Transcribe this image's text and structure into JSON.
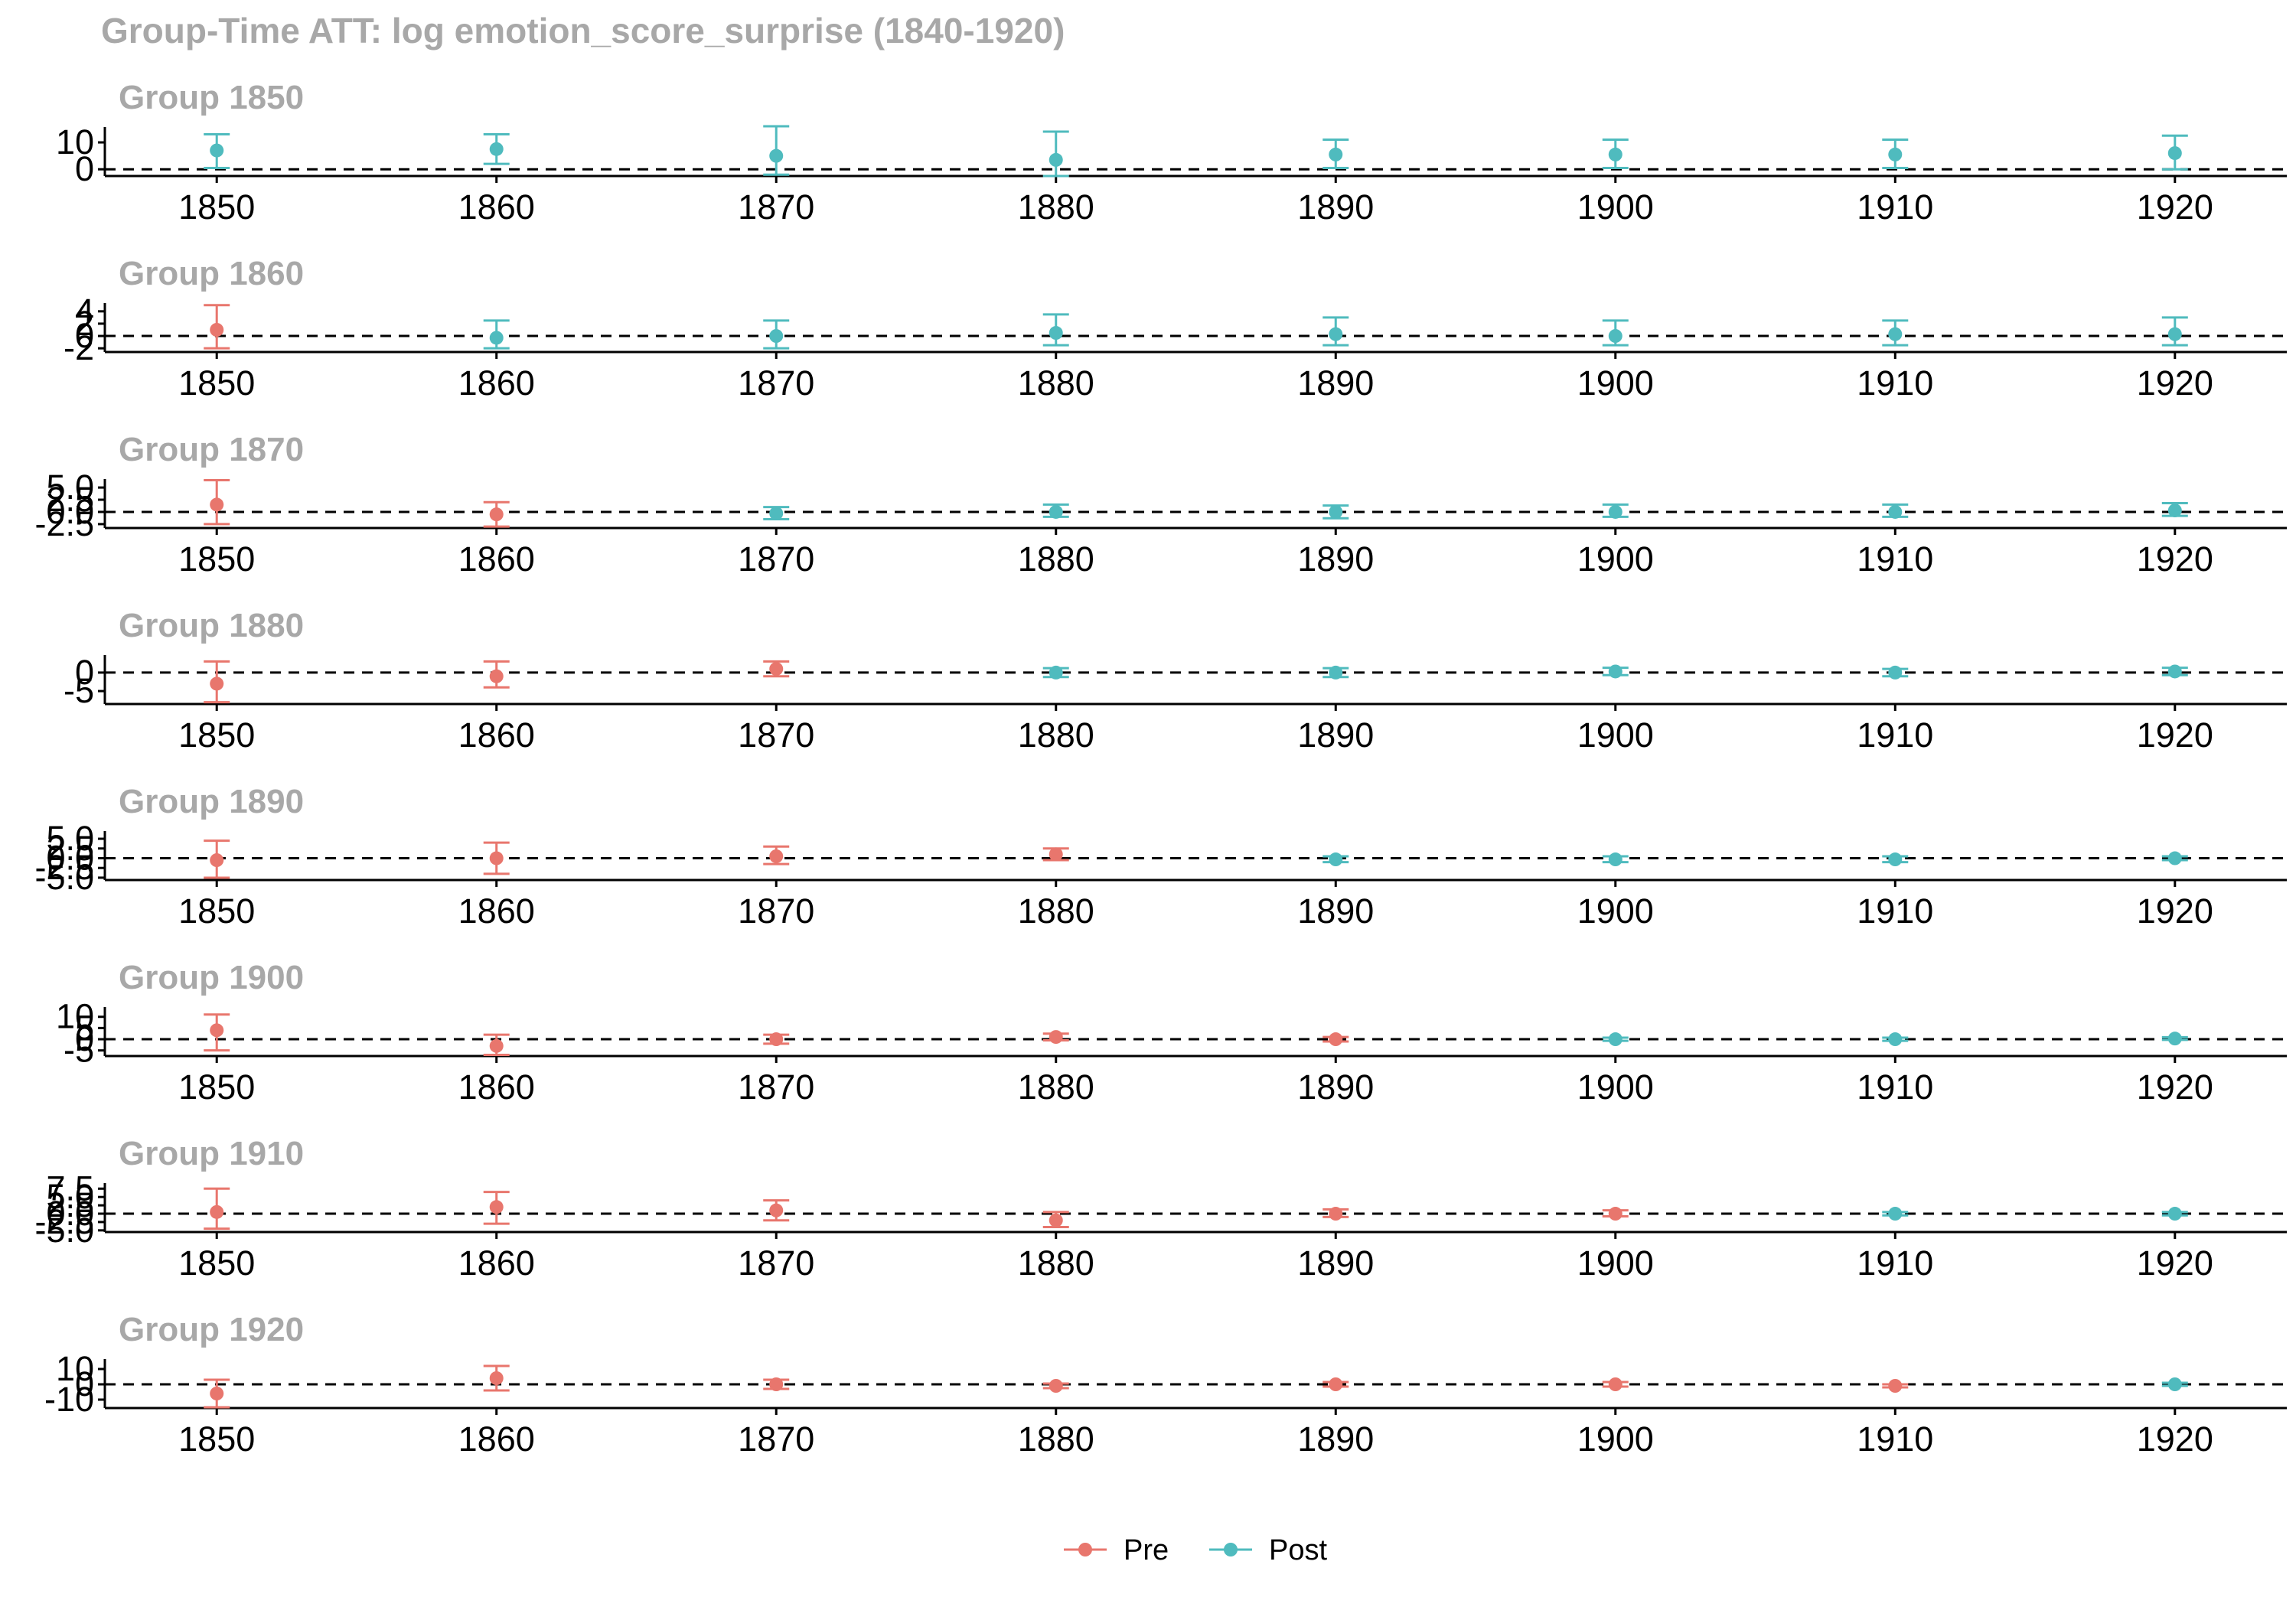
{
  "chart_data": {
    "type": "scatter",
    "title": "Group-Time ATT: log emotion_score_surprise (1840-1920)",
    "x_ticks": [
      "1850",
      "1860",
      "1870",
      "1880",
      "1890",
      "1900",
      "1910",
      "1920"
    ],
    "xlim": [
      1846,
      1924
    ],
    "reference_line_y": 0,
    "legend": {
      "position": "bottom",
      "entries": [
        {
          "label": "Pre",
          "color": "#E8766D"
        },
        {
          "label": "Post",
          "color": "#4FBBBE"
        }
      ]
    },
    "panels": [
      {
        "title": "Group 1850",
        "ylim": [
          -2.5,
          14
        ],
        "y_ticks": [
          "0",
          "10"
        ],
        "y_tick_values": [
          0,
          10
        ],
        "points": [
          {
            "x": 1850,
            "att": 7.0,
            "lo": 0.5,
            "hi": 13.0,
            "period": "Post"
          },
          {
            "x": 1860,
            "att": 7.5,
            "lo": 2.0,
            "hi": 13.0,
            "period": "Post"
          },
          {
            "x": 1870,
            "att": 5.0,
            "lo": -2.0,
            "hi": 16.0,
            "period": "Post"
          },
          {
            "x": 1880,
            "att": 3.5,
            "lo": -2.5,
            "hi": 14.0,
            "period": "Post"
          },
          {
            "x": 1890,
            "att": 5.5,
            "lo": 0.5,
            "hi": 11.0,
            "period": "Post"
          },
          {
            "x": 1900,
            "att": 5.5,
            "lo": 0.5,
            "hi": 11.0,
            "period": "Post"
          },
          {
            "x": 1910,
            "att": 5.5,
            "lo": 0.5,
            "hi": 11.0,
            "period": "Post"
          },
          {
            "x": 1920,
            "att": 6.0,
            "lo": 0.0,
            "hi": 12.5,
            "period": "Post"
          }
        ]
      },
      {
        "title": "Group 1860",
        "ylim": [
          -2.6,
          4.6
        ],
        "y_ticks": [
          "-2",
          "0",
          "2",
          "4"
        ],
        "y_tick_values": [
          -2,
          0,
          2,
          4
        ],
        "points": [
          {
            "x": 1850,
            "att": 1.0,
            "lo": -2.0,
            "hi": 5.0,
            "period": "Pre"
          },
          {
            "x": 1860,
            "att": -0.3,
            "lo": -2.0,
            "hi": 2.5,
            "period": "Post"
          },
          {
            "x": 1870,
            "att": 0.0,
            "lo": -2.0,
            "hi": 2.5,
            "period": "Post"
          },
          {
            "x": 1880,
            "att": 0.5,
            "lo": -1.5,
            "hi": 3.5,
            "period": "Post"
          },
          {
            "x": 1890,
            "att": 0.3,
            "lo": -1.5,
            "hi": 3.0,
            "period": "Post"
          },
          {
            "x": 1900,
            "att": 0.0,
            "lo": -1.5,
            "hi": 2.5,
            "period": "Post"
          },
          {
            "x": 1910,
            "att": 0.3,
            "lo": -1.5,
            "hi": 2.5,
            "period": "Post"
          },
          {
            "x": 1920,
            "att": 0.3,
            "lo": -1.5,
            "hi": 3.0,
            "period": "Post"
          }
        ]
      },
      {
        "title": "Group 1870",
        "ylim": [
          -3.3,
          5.8
        ],
        "y_ticks": [
          "-2.5",
          "0.0",
          "2.5",
          "5.0"
        ],
        "y_tick_values": [
          -2.5,
          0,
          2.5,
          5
        ],
        "points": [
          {
            "x": 1850,
            "att": 1.5,
            "lo": -2.5,
            "hi": 6.5,
            "period": "Pre"
          },
          {
            "x": 1860,
            "att": -0.5,
            "lo": -3.0,
            "hi": 2.0,
            "period": "Pre"
          },
          {
            "x": 1870,
            "att": -0.3,
            "lo": -1.5,
            "hi": 1.0,
            "period": "Post"
          },
          {
            "x": 1880,
            "att": 0.0,
            "lo": -1.0,
            "hi": 1.5,
            "period": "Post"
          },
          {
            "x": 1890,
            "att": 0.0,
            "lo": -1.3,
            "hi": 1.3,
            "period": "Post"
          },
          {
            "x": 1900,
            "att": 0.0,
            "lo": -1.0,
            "hi": 1.5,
            "period": "Post"
          },
          {
            "x": 1910,
            "att": 0.0,
            "lo": -1.0,
            "hi": 1.5,
            "period": "Post"
          },
          {
            "x": 1920,
            "att": 0.3,
            "lo": -0.8,
            "hi": 1.8,
            "period": "Post"
          }
        ]
      },
      {
        "title": "Group 1880",
        "ylim": [
          -8.5,
          3.5
        ],
        "y_ticks": [
          "-5",
          "0"
        ],
        "y_tick_values": [
          -5,
          0
        ],
        "points": [
          {
            "x": 1850,
            "att": -3.0,
            "lo": -8.0,
            "hi": 3.0,
            "period": "Pre"
          },
          {
            "x": 1860,
            "att": -1.0,
            "lo": -4.0,
            "hi": 3.0,
            "period": "Pre"
          },
          {
            "x": 1870,
            "att": 1.0,
            "lo": -1.0,
            "hi": 3.0,
            "period": "Pre"
          },
          {
            "x": 1880,
            "att": 0.0,
            "lo": -1.2,
            "hi": 1.2,
            "period": "Post"
          },
          {
            "x": 1890,
            "att": 0.0,
            "lo": -1.2,
            "hi": 1.2,
            "period": "Post"
          },
          {
            "x": 1900,
            "att": 0.3,
            "lo": -0.7,
            "hi": 1.3,
            "period": "Post"
          },
          {
            "x": 1910,
            "att": 0.0,
            "lo": -1.0,
            "hi": 1.0,
            "period": "Post"
          },
          {
            "x": 1920,
            "att": 0.3,
            "lo": -0.7,
            "hi": 1.3,
            "period": "Post"
          }
        ]
      },
      {
        "title": "Group 1890",
        "ylim": [
          -5.6,
          5.8
        ],
        "y_ticks": [
          "-5.0",
          "-2.5",
          "0.0",
          "2.5",
          "5.0"
        ],
        "y_tick_values": [
          -5,
          -2.5,
          0,
          2.5,
          5
        ],
        "points": [
          {
            "x": 1850,
            "att": -0.5,
            "lo": -5.0,
            "hi": 4.5,
            "period": "Pre"
          },
          {
            "x": 1860,
            "att": 0.0,
            "lo": -4.0,
            "hi": 4.0,
            "period": "Pre"
          },
          {
            "x": 1870,
            "att": 0.5,
            "lo": -1.5,
            "hi": 3.0,
            "period": "Pre"
          },
          {
            "x": 1880,
            "att": 1.0,
            "lo": -0.5,
            "hi": 2.5,
            "period": "Pre"
          },
          {
            "x": 1890,
            "att": -0.3,
            "lo": -1.0,
            "hi": 0.5,
            "period": "Post"
          },
          {
            "x": 1900,
            "att": -0.3,
            "lo": -1.0,
            "hi": 0.5,
            "period": "Post"
          },
          {
            "x": 1910,
            "att": -0.3,
            "lo": -1.0,
            "hi": 0.5,
            "period": "Post"
          },
          {
            "x": 1920,
            "att": 0.0,
            "lo": -0.5,
            "hi": 0.5,
            "period": "Post"
          }
        ]
      },
      {
        "title": "Group 1900",
        "ylim": [
          -7.5,
          12.3
        ],
        "y_ticks": [
          "-5",
          "0",
          "5",
          "10"
        ],
        "y_tick_values": [
          -5,
          0,
          5,
          10
        ],
        "points": [
          {
            "x": 1850,
            "att": 4.0,
            "lo": -5.0,
            "hi": 11.0,
            "period": "Pre"
          },
          {
            "x": 1860,
            "att": -3.0,
            "lo": -7.0,
            "hi": 2.0,
            "period": "Pre"
          },
          {
            "x": 1870,
            "att": 0.0,
            "lo": -2.0,
            "hi": 2.0,
            "period": "Pre"
          },
          {
            "x": 1880,
            "att": 1.0,
            "lo": -0.5,
            "hi": 2.5,
            "period": "Pre"
          },
          {
            "x": 1890,
            "att": 0.0,
            "lo": -1.0,
            "hi": 1.0,
            "period": "Pre"
          },
          {
            "x": 1900,
            "att": 0.0,
            "lo": -0.7,
            "hi": 0.7,
            "period": "Post"
          },
          {
            "x": 1910,
            "att": 0.0,
            "lo": -0.7,
            "hi": 0.7,
            "period": "Post"
          },
          {
            "x": 1920,
            "att": 0.3,
            "lo": -0.3,
            "hi": 0.9,
            "period": "Post"
          }
        ]
      },
      {
        "title": "Group 1910",
        "ylim": [
          -5.5,
          7.8
        ],
        "y_ticks": [
          "-5.0",
          "-2.5",
          "0.0",
          "2.5",
          "5.0",
          "7.5"
        ],
        "y_tick_values": [
          -5,
          -2.5,
          0,
          2.5,
          5,
          7.5
        ],
        "points": [
          {
            "x": 1850,
            "att": 0.5,
            "lo": -4.5,
            "hi": 7.5,
            "period": "Pre"
          },
          {
            "x": 1860,
            "att": 2.0,
            "lo": -3.0,
            "hi": 6.5,
            "period": "Pre"
          },
          {
            "x": 1870,
            "att": 1.0,
            "lo": -2.0,
            "hi": 4.0,
            "period": "Pre"
          },
          {
            "x": 1880,
            "att": -2.0,
            "lo": -4.0,
            "hi": 0.5,
            "period": "Pre"
          },
          {
            "x": 1890,
            "att": 0.0,
            "lo": -1.0,
            "hi": 1.3,
            "period": "Pre"
          },
          {
            "x": 1900,
            "att": 0.0,
            "lo": -0.8,
            "hi": 1.0,
            "period": "Pre"
          },
          {
            "x": 1910,
            "att": 0.0,
            "lo": -0.5,
            "hi": 0.5,
            "period": "Post"
          },
          {
            "x": 1920,
            "att": 0.0,
            "lo": -0.5,
            "hi": 0.5,
            "period": "Post"
          }
        ]
      },
      {
        "title": "Group 1920",
        "ylim": [
          -15.5,
          13.5
        ],
        "y_ticks": [
          "-10",
          "0",
          "10"
        ],
        "y_tick_values": [
          -10,
          0,
          10
        ],
        "points": [
          {
            "x": 1850,
            "att": -6.0,
            "lo": -15.0,
            "hi": 3.0,
            "period": "Pre"
          },
          {
            "x": 1860,
            "att": 4.0,
            "lo": -4.0,
            "hi": 12.0,
            "period": "Pre"
          },
          {
            "x": 1870,
            "att": 0.0,
            "lo": -3.0,
            "hi": 3.0,
            "period": "Pre"
          },
          {
            "x": 1880,
            "att": -1.0,
            "lo": -2.5,
            "hi": 0.5,
            "period": "Pre"
          },
          {
            "x": 1890,
            "att": 0.0,
            "lo": -1.5,
            "hi": 1.5,
            "period": "Pre"
          },
          {
            "x": 1900,
            "att": 0.0,
            "lo": -1.5,
            "hi": 1.5,
            "period": "Pre"
          },
          {
            "x": 1910,
            "att": -1.0,
            "lo": -2.0,
            "hi": 0.0,
            "period": "Pre"
          },
          {
            "x": 1920,
            "att": 0.0,
            "lo": -1.0,
            "hi": 1.0,
            "period": "Post"
          }
        ]
      }
    ]
  }
}
